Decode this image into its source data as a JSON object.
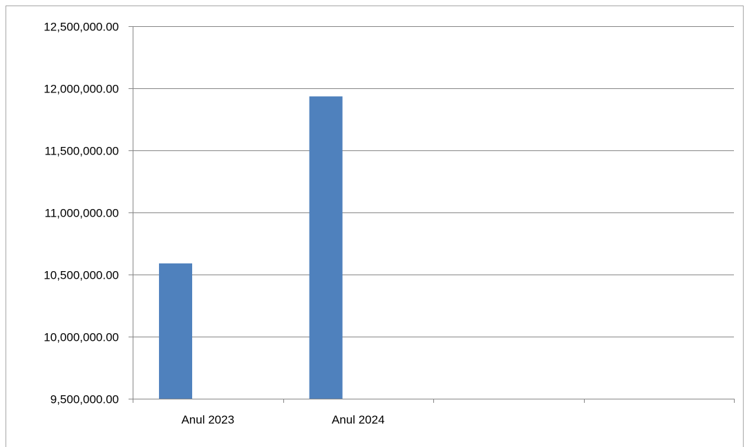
{
  "chart_data": {
    "type": "bar",
    "categories": [
      "Anul 2023",
      "Anul 2024",
      "",
      ""
    ],
    "series": [
      {
        "values": [
          10590000,
          11935000,
          null,
          null
        ],
        "color": "#4f81bd"
      }
    ],
    "ylim": [
      9500000,
      12500000
    ],
    "y_ticks": [
      9500000,
      10000000,
      10500000,
      11000000,
      11500000,
      12000000,
      12500000
    ],
    "y_tick_labels": [
      "9,500,000.00",
      "10,000,000.00",
      "10,500,000.00",
      "11,000,000.00",
      "11,500,000.00",
      "12,000,000.00",
      "12,500,000.00"
    ],
    "grid": true,
    "gridline_color": "#868686",
    "axis_color": "#868686",
    "title": "",
    "xlabel": "",
    "ylabel": ""
  }
}
